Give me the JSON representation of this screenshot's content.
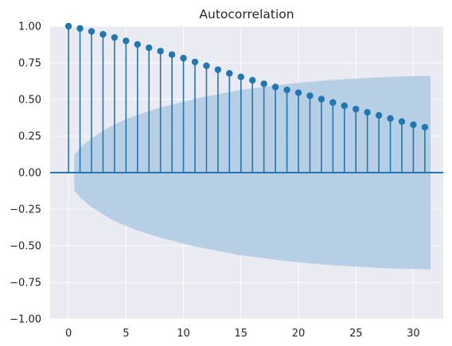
{
  "chart_data": {
    "type": "stem",
    "title": "Autocorrelation",
    "xlabel": "",
    "ylabel": "",
    "xlim": [
      -1.6,
      32.6
    ],
    "ylim": [
      -1.0,
      1.0
    ],
    "x_ticks": [
      0,
      5,
      10,
      15,
      20,
      25,
      30
    ],
    "x_tick_labels": [
      "0",
      "5",
      "10",
      "15",
      "20",
      "25",
      "30"
    ],
    "y_ticks": [
      1.0,
      0.75,
      0.5,
      0.25,
      0.0,
      -0.25,
      -0.5,
      -0.75,
      -1.0
    ],
    "y_tick_labels": [
      "1.00",
      "0.75",
      "0.50",
      "0.25",
      "0.00",
      "−0.25",
      "−0.50",
      "−0.75",
      "−1.00"
    ],
    "grid": true,
    "lags": [
      0,
      1,
      2,
      3,
      4,
      5,
      6,
      7,
      8,
      9,
      10,
      11,
      12,
      13,
      14,
      15,
      16,
      17,
      18,
      19,
      20,
      21,
      22,
      23,
      24,
      25,
      26,
      27,
      28,
      29,
      30,
      31
    ],
    "acf": [
      1.0,
      0.985,
      0.965,
      0.945,
      0.923,
      0.9,
      0.876,
      0.853,
      0.83,
      0.806,
      0.782,
      0.756,
      0.73,
      0.703,
      0.678,
      0.654,
      0.631,
      0.607,
      0.585,
      0.565,
      0.546,
      0.525,
      0.502,
      0.479,
      0.457,
      0.434,
      0.412,
      0.391,
      0.37,
      0.349,
      0.327,
      0.31
    ],
    "confidence_band": {
      "lags": [
        0.5,
        1,
        2,
        3,
        4,
        5,
        6,
        7,
        8,
        9,
        10,
        11,
        12,
        13,
        14,
        15,
        16,
        17,
        18,
        19,
        20,
        21,
        22,
        23,
        24,
        25,
        26,
        27,
        28,
        29,
        30,
        31.5
      ],
      "upper": [
        0.12,
        0.17,
        0.235,
        0.285,
        0.33,
        0.365,
        0.395,
        0.42,
        0.445,
        0.465,
        0.485,
        0.505,
        0.52,
        0.535,
        0.55,
        0.565,
        0.575,
        0.585,
        0.595,
        0.605,
        0.612,
        0.62,
        0.627,
        0.633,
        0.638,
        0.643,
        0.647,
        0.651,
        0.654,
        0.657,
        0.659,
        0.661
      ]
    },
    "colors": {
      "stem": "#1f77b4",
      "band": "#b3cde3",
      "plot_bg": "#eaeaf2",
      "grid": "#ffffff",
      "text": "#262626"
    }
  }
}
